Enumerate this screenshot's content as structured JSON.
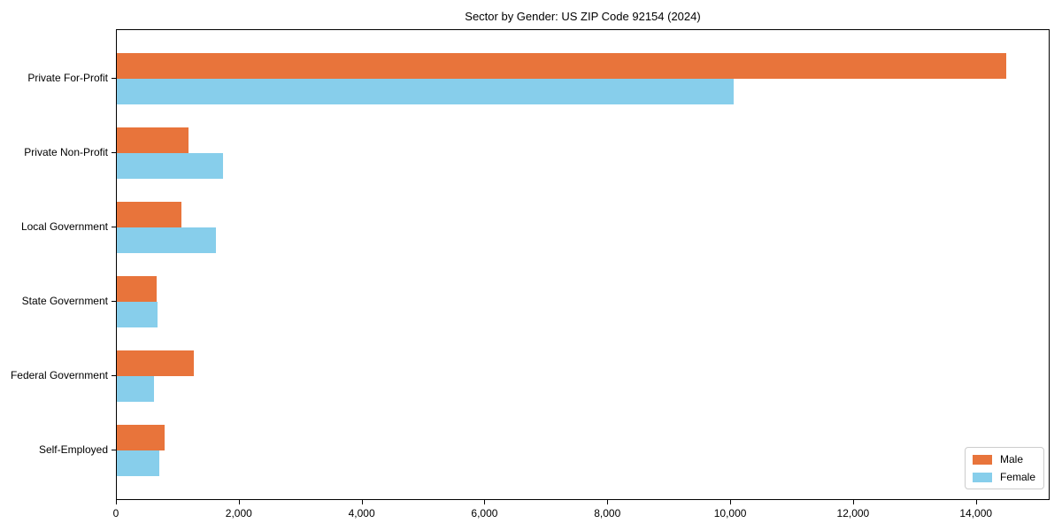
{
  "chart_data": {
    "type": "bar",
    "orientation": "horizontal",
    "title": "Sector by Gender: US ZIP Code 92154 (2024)",
    "categories": [
      "Private For-Profit",
      "Private Non-Profit",
      "Local Government",
      "State Government",
      "Federal Government",
      "Self-Employed"
    ],
    "series": [
      {
        "name": "Male",
        "color": "#e8743b",
        "values": [
          14500,
          1170,
          1050,
          655,
          1260,
          780
        ]
      },
      {
        "name": "Female",
        "color": "#87ceeb",
        "values": [
          10060,
          1730,
          1610,
          670,
          600,
          700
        ]
      }
    ],
    "xlabel": "",
    "ylabel": "",
    "xlim": [
      0,
      15200
    ],
    "xticks": {
      "values": [
        0,
        2000,
        4000,
        6000,
        8000,
        10000,
        12000,
        14000
      ],
      "labels": [
        "0",
        "2,000",
        "4,000",
        "6,000",
        "8,000",
        "10,000",
        "12,000",
        "14,000"
      ]
    },
    "grid": false,
    "legend_position": "lower right",
    "plot_border_color": "#000000",
    "background_color": "#ffffff"
  }
}
